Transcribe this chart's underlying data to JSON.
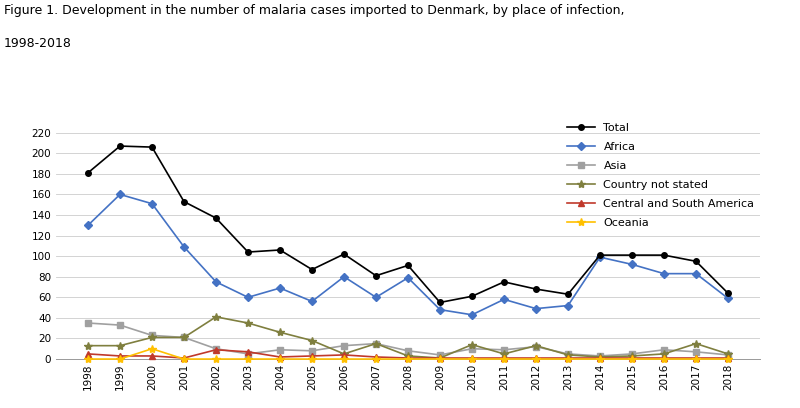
{
  "years": [
    1998,
    1999,
    2000,
    2001,
    2002,
    2003,
    2004,
    2005,
    2006,
    2007,
    2008,
    2009,
    2010,
    2011,
    2012,
    2013,
    2014,
    2015,
    2016,
    2017,
    2018
  ],
  "series": {
    "Total": {
      "values": [
        181,
        207,
        206,
        153,
        137,
        104,
        106,
        87,
        102,
        81,
        91,
        55,
        61,
        75,
        68,
        63,
        101,
        101,
        101,
        95,
        64
      ],
      "color": "#000000",
      "marker": "o",
      "markersize": 4,
      "linestyle": "-",
      "linewidth": 1.2,
      "zorder": 5
    },
    "Africa": {
      "values": [
        130,
        160,
        151,
        109,
        75,
        60,
        69,
        56,
        80,
        60,
        79,
        48,
        43,
        58,
        49,
        52,
        99,
        92,
        83,
        83,
        59
      ],
      "color": "#4472C4",
      "marker": "D",
      "markersize": 4,
      "linestyle": "-",
      "linewidth": 1.2,
      "zorder": 4
    },
    "Asia": {
      "values": [
        35,
        33,
        23,
        21,
        10,
        5,
        9,
        8,
        13,
        15,
        8,
        4,
        10,
        9,
        12,
        5,
        3,
        5,
        9,
        7,
        4
      ],
      "color": "#A0A0A0",
      "marker": "s",
      "markersize": 4,
      "linestyle": "-",
      "linewidth": 1.2,
      "zorder": 3
    },
    "Country not stated": {
      "values": [
        13,
        13,
        21,
        21,
        41,
        35,
        26,
        18,
        5,
        15,
        3,
        1,
        14,
        5,
        13,
        4,
        2,
        3,
        5,
        15,
        5
      ],
      "color": "#7F7F3F",
      "marker": "*",
      "markersize": 6,
      "linestyle": "-",
      "linewidth": 1.2,
      "zorder": 3
    },
    "Central and South America": {
      "values": [
        5,
        3,
        3,
        1,
        9,
        7,
        2,
        3,
        4,
        2,
        1,
        1,
        1,
        1,
        1,
        1,
        1,
        1,
        1,
        1,
        1
      ],
      "color": "#C0392B",
      "marker": "^",
      "markersize": 4,
      "linestyle": "-",
      "linewidth": 1.2,
      "zorder": 3
    },
    "Oceania": {
      "values": [
        0,
        0,
        10,
        0,
        0,
        0,
        0,
        0,
        0,
        0,
        0,
        0,
        0,
        0,
        0,
        0,
        0,
        0,
        0,
        0,
        0
      ],
      "color": "#FFC000",
      "marker": "*",
      "markersize": 6,
      "linestyle": "-",
      "linewidth": 1.2,
      "zorder": 3
    }
  },
  "title_line1": "Figure 1. Development in the number of malaria cases imported to Denmark, by place of infection,",
  "title_line2": "1998-2018",
  "title_fontsize": 9,
  "ylim": [
    0,
    230
  ],
  "yticks": [
    0,
    20,
    40,
    60,
    80,
    100,
    120,
    140,
    160,
    180,
    200,
    220
  ],
  "background_color": "#ffffff",
  "legend_order": [
    "Total",
    "Africa",
    "Asia",
    "Country not stated",
    "Central and South America",
    "Oceania"
  ]
}
